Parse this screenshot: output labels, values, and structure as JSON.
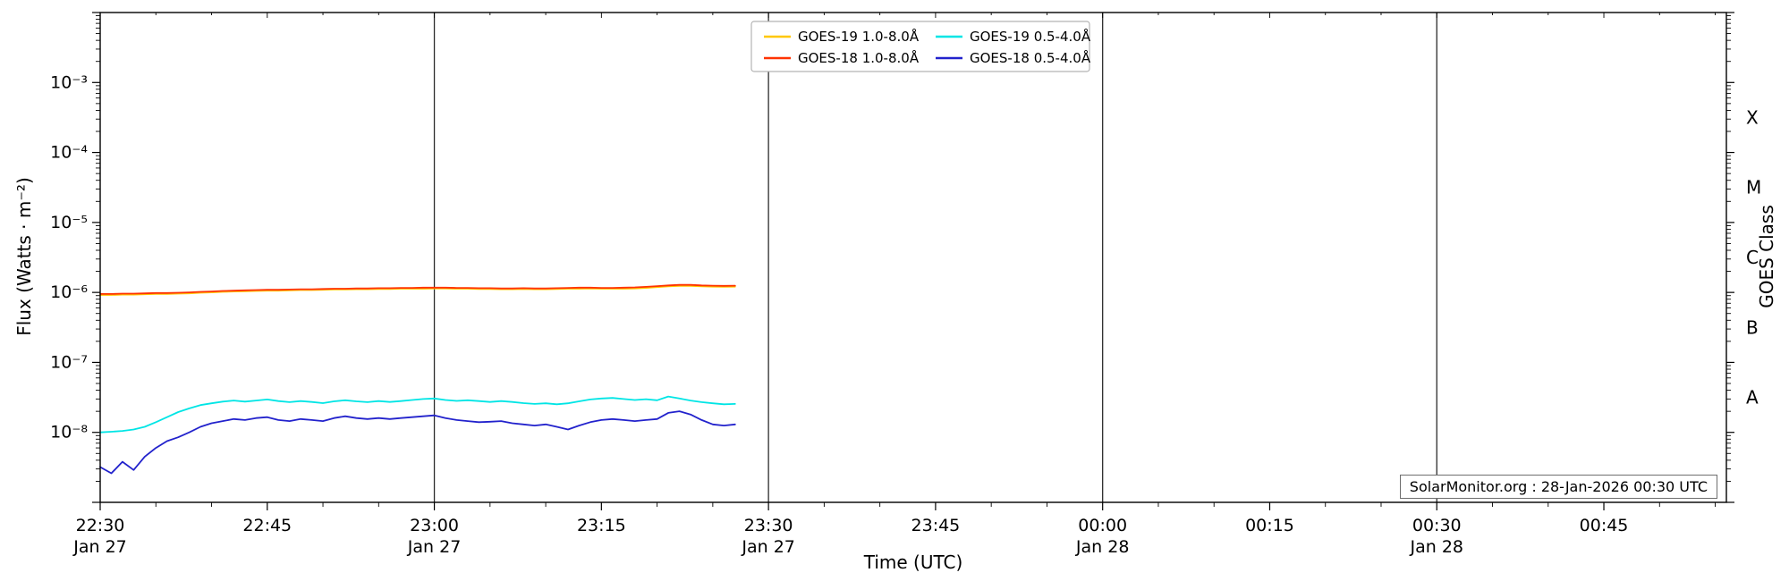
{
  "labels": {
    "y_left": "Flux (Watts · m⁻²)",
    "y_right": "GOES Class",
    "x": "Time (UTC)"
  },
  "annotation": {
    "text": "SolarMonitor.org : 28-Jan-2026 00:30 UTC"
  },
  "chart_data": {
    "type": "line",
    "title": "",
    "xlabel": "Time (UTC)",
    "ylabel": "Flux (Watts · m⁻²)",
    "ylabel_right": "GOES Class",
    "y_scale": "log",
    "y_log_range": [
      -9,
      -2
    ],
    "x_unit": "minutes after 22:30 UTC Jan 27",
    "x_range": [
      0,
      146
    ],
    "x_minor_step": 5,
    "x_ticks": [
      {
        "min": 0,
        "label": "22:30",
        "date": "Jan 27"
      },
      {
        "min": 15,
        "label": "22:45"
      },
      {
        "min": 30,
        "label": "23:00",
        "date": "Jan 27"
      },
      {
        "min": 45,
        "label": "23:15"
      },
      {
        "min": 60,
        "label": "23:30",
        "date": "Jan 27"
      },
      {
        "min": 75,
        "label": "23:45"
      },
      {
        "min": 90,
        "label": "00:00",
        "date": "Jan 28"
      },
      {
        "min": 105,
        "label": "00:15"
      },
      {
        "min": 120,
        "label": "00:30",
        "date": "Jan 28"
      },
      {
        "min": 135,
        "label": "00:45"
      }
    ],
    "y_ticks": [
      {
        "exp": -3,
        "label": "10⁻³"
      },
      {
        "exp": -4,
        "label": "10⁻⁴"
      },
      {
        "exp": -5,
        "label": "10⁻⁵"
      },
      {
        "exp": -6,
        "label": "10⁻⁶"
      },
      {
        "exp": -7,
        "label": "10⁻⁷"
      },
      {
        "exp": -8,
        "label": "10⁻⁸"
      }
    ],
    "goes_classes": [
      {
        "label": "X",
        "exp_center": -3.5
      },
      {
        "label": "M",
        "exp_center": -4.5
      },
      {
        "label": "C",
        "exp_center": -5.5
      },
      {
        "label": "B",
        "exp_center": -6.5
      },
      {
        "label": "A",
        "exp_center": -7.5
      }
    ],
    "day_boundaries_min": [
      30,
      60,
      90,
      120
    ],
    "legend": [
      {
        "label": "GOES-19 1.0-8.0Å",
        "color": "#ffc800"
      },
      {
        "label": "GOES-18 1.0-8.0Å",
        "color": "#ff3300"
      },
      {
        "label": "GOES-19 0.5-4.0Å",
        "color": "#00e5e5"
      },
      {
        "label": "GOES-18 0.5-4.0Å",
        "color": "#2222cc"
      }
    ],
    "x_minutes": [
      0,
      1,
      2,
      3,
      4,
      5,
      6,
      7,
      8,
      9,
      10,
      11,
      12,
      13,
      14,
      15,
      16,
      17,
      18,
      19,
      20,
      21,
      22,
      23,
      24,
      25,
      26,
      27,
      28,
      29,
      30,
      31,
      32,
      33,
      34,
      35,
      36,
      37,
      38,
      39,
      40,
      41,
      42,
      43,
      44,
      45,
      46,
      47,
      48,
      49,
      50,
      51,
      52,
      53,
      54,
      55,
      56,
      57
    ],
    "series": [
      {
        "name": "GOES-19 1.0-8.0Å",
        "color": "#ffc800",
        "flux": [
          9.2e-07,
          9.2e-07,
          9.3e-07,
          9.3e-07,
          9.4e-07,
          9.5e-07,
          9.5e-07,
          9.6e-07,
          9.7e-07,
          9.9e-07,
          1e-06,
          1.02e-06,
          1.03e-06,
          1.04e-06,
          1.05e-06,
          1.06e-06,
          1.06e-06,
          1.07e-06,
          1.08e-06,
          1.08e-06,
          1.09e-06,
          1.1e-06,
          1.1e-06,
          1.11e-06,
          1.11e-06,
          1.12e-06,
          1.12e-06,
          1.13e-06,
          1.13e-06,
          1.13e-06,
          1.14e-06,
          1.14e-06,
          1.13e-06,
          1.13e-06,
          1.12e-06,
          1.12e-06,
          1.11e-06,
          1.11e-06,
          1.12e-06,
          1.11e-06,
          1.11e-06,
          1.12e-06,
          1.13e-06,
          1.13e-06,
          1.14e-06,
          1.13e-06,
          1.13e-06,
          1.13e-06,
          1.14e-06,
          1.16e-06,
          1.19e-06,
          1.22e-06,
          1.24e-06,
          1.24e-06,
          1.22e-06,
          1.21e-06,
          1.2e-06,
          1.21e-06
        ]
      },
      {
        "name": "GOES-18 1.0-8.0Å",
        "color": "#ff3300",
        "flux": [
          9.5e-07,
          9.5e-07,
          9.6e-07,
          9.6e-07,
          9.7e-07,
          9.8e-07,
          9.8e-07,
          9.9e-07,
          1e-06,
          1.02e-06,
          1.03e-06,
          1.05e-06,
          1.06e-06,
          1.07e-06,
          1.08e-06,
          1.09e-06,
          1.09e-06,
          1.1e-06,
          1.11e-06,
          1.11e-06,
          1.12e-06,
          1.13e-06,
          1.13e-06,
          1.14e-06,
          1.14e-06,
          1.15e-06,
          1.15e-06,
          1.16e-06,
          1.16e-06,
          1.17e-06,
          1.17e-06,
          1.17e-06,
          1.16e-06,
          1.16e-06,
          1.15e-06,
          1.15e-06,
          1.14e-06,
          1.14e-06,
          1.15e-06,
          1.14e-06,
          1.14e-06,
          1.15e-06,
          1.16e-06,
          1.17e-06,
          1.17e-06,
          1.16e-06,
          1.16e-06,
          1.17e-06,
          1.18e-06,
          1.2e-06,
          1.23e-06,
          1.26e-06,
          1.28e-06,
          1.28e-06,
          1.26e-06,
          1.25e-06,
          1.24e-06,
          1.25e-06
        ]
      },
      {
        "name": "GOES-19 0.5-4.0Å",
        "color": "#00e5e5",
        "flux": [
          1e-08,
          1.02e-08,
          1.05e-08,
          1.1e-08,
          1.2e-08,
          1.4e-08,
          1.65e-08,
          1.95e-08,
          2.2e-08,
          2.45e-08,
          2.6e-08,
          2.75e-08,
          2.85e-08,
          2.75e-08,
          2.85e-08,
          2.95e-08,
          2.8e-08,
          2.7e-08,
          2.8e-08,
          2.72e-08,
          2.62e-08,
          2.78e-08,
          2.88e-08,
          2.78e-08,
          2.7e-08,
          2.8e-08,
          2.72e-08,
          2.8e-08,
          2.9e-08,
          3e-08,
          3.05e-08,
          2.9e-08,
          2.82e-08,
          2.88e-08,
          2.8e-08,
          2.72e-08,
          2.8e-08,
          2.72e-08,
          2.62e-08,
          2.55e-08,
          2.6e-08,
          2.52e-08,
          2.6e-08,
          2.78e-08,
          2.95e-08,
          3.05e-08,
          3.1e-08,
          3e-08,
          2.9e-08,
          2.98e-08,
          2.88e-08,
          3.25e-08,
          3.05e-08,
          2.85e-08,
          2.7e-08,
          2.6e-08,
          2.52e-08,
          2.55e-08
        ]
      },
      {
        "name": "GOES-18 0.5-4.0Å",
        "color": "#2222cc",
        "flux": [
          3.2e-09,
          2.6e-09,
          3.8e-09,
          2.9e-09,
          4.5e-09,
          6e-09,
          7.5e-09,
          8.5e-09,
          1e-08,
          1.2e-08,
          1.35e-08,
          1.45e-08,
          1.55e-08,
          1.5e-08,
          1.6e-08,
          1.65e-08,
          1.5e-08,
          1.45e-08,
          1.55e-08,
          1.5e-08,
          1.45e-08,
          1.6e-08,
          1.7e-08,
          1.6e-08,
          1.55e-08,
          1.6e-08,
          1.55e-08,
          1.6e-08,
          1.65e-08,
          1.7e-08,
          1.75e-08,
          1.6e-08,
          1.5e-08,
          1.45e-08,
          1.4e-08,
          1.42e-08,
          1.45e-08,
          1.35e-08,
          1.3e-08,
          1.25e-08,
          1.3e-08,
          1.2e-08,
          1.1e-08,
          1.25e-08,
          1.4e-08,
          1.5e-08,
          1.55e-08,
          1.5e-08,
          1.45e-08,
          1.5e-08,
          1.55e-08,
          1.9e-08,
          2e-08,
          1.8e-08,
          1.5e-08,
          1.3e-08,
          1.25e-08,
          1.3e-08
        ]
      }
    ]
  }
}
